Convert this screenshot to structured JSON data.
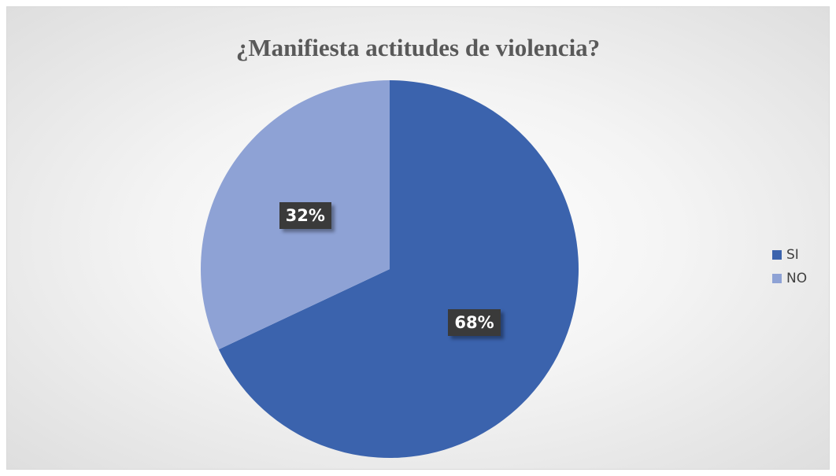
{
  "chart_data": {
    "type": "pie",
    "title": "¿Manifiesta actitudes de violencia?",
    "categories": [
      "SI",
      "NO"
    ],
    "values": [
      68,
      32
    ],
    "labels": [
      "68%",
      "32%"
    ],
    "colors": [
      "#3b63ad",
      "#8ea2d5"
    ],
    "start_angle_deg": 0,
    "direction": "clockwise",
    "legend_position": "right"
  }
}
